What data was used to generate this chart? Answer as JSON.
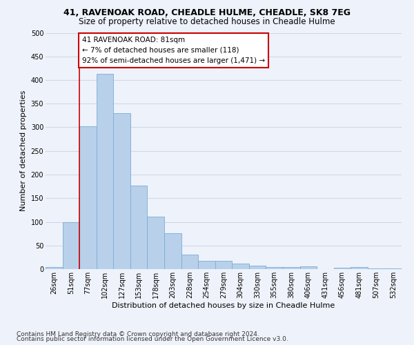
{
  "title": "41, RAVENOAK ROAD, CHEADLE HULME, CHEADLE, SK8 7EG",
  "subtitle": "Size of property relative to detached houses in Cheadle Hulme",
  "xlabel": "Distribution of detached houses by size in Cheadle Hulme",
  "ylabel": "Number of detached properties",
  "bin_labels": [
    "26sqm",
    "51sqm",
    "77sqm",
    "102sqm",
    "127sqm",
    "153sqm",
    "178sqm",
    "203sqm",
    "228sqm",
    "254sqm",
    "279sqm",
    "304sqm",
    "330sqm",
    "355sqm",
    "380sqm",
    "406sqm",
    "431sqm",
    "456sqm",
    "481sqm",
    "507sqm",
    "532sqm"
  ],
  "bar_values": [
    5,
    99,
    302,
    413,
    330,
    176,
    111,
    76,
    30,
    18,
    18,
    11,
    7,
    4,
    4,
    6,
    0,
    3,
    4,
    2,
    2
  ],
  "bar_color": "#b8d0ea",
  "bar_edge_color": "#7aadd4",
  "grid_color": "#d0d8e8",
  "annotation_box_text": "41 RAVENOAK ROAD: 81sqm\n← 7% of detached houses are smaller (118)\n92% of semi-detached houses are larger (1,471) →",
  "annotation_box_color": "#ffffff",
  "annotation_box_edge_color": "#cc0000",
  "annotation_line_color": "#cc0000",
  "ylim": [
    0,
    500
  ],
  "yticks": [
    0,
    50,
    100,
    150,
    200,
    250,
    300,
    350,
    400,
    450,
    500
  ],
  "footnote1": "Contains HM Land Registry data © Crown copyright and database right 2024.",
  "footnote2": "Contains public sector information licensed under the Open Government Licence v3.0.",
  "title_fontsize": 9,
  "subtitle_fontsize": 8.5,
  "xlabel_fontsize": 8,
  "ylabel_fontsize": 8,
  "tick_fontsize": 7,
  "annotation_fontsize": 7.5,
  "footnote_fontsize": 6.5,
  "bg_color": "#eef2fa"
}
